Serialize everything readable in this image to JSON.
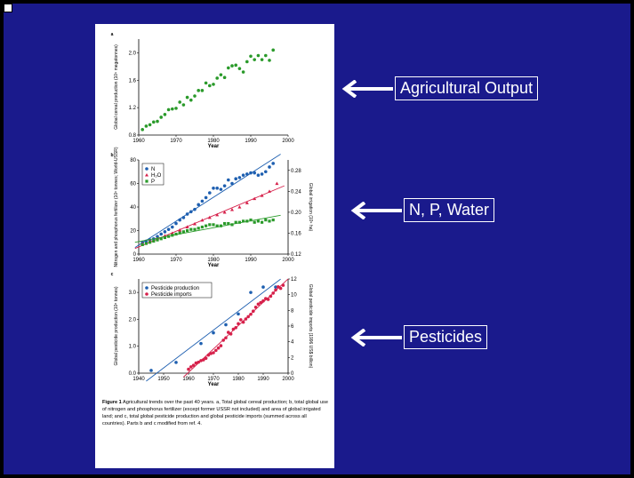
{
  "callouts": [
    {
      "label": "Agricultural Output"
    },
    {
      "label": "N, P, Water"
    },
    {
      "label": "Pesticides"
    }
  ],
  "colors": {
    "background": "#1a1a8c",
    "panel": "#ffffff",
    "green": "#2a9a2a",
    "blue": "#1e5fb0",
    "red": "#d6204a"
  },
  "figure": {
    "caption_title": "Figure 1",
    "caption_text": " Agricultural trends over the past 40 years. a, Total global cereal production; b, total global use of nitrogen and phosphorus fertilizer (except former USSR not included) and area of global irrigated land; and c, total global pesticide production and global pesticide imports (summed across all countries). Parts b and c modified from ref. 4."
  },
  "chart_data": [
    {
      "type": "scatter",
      "panel_label": "a",
      "ylabel": "Global cereal production (10⁹ megatonnes)",
      "xlabel": "Year",
      "xlim": [
        1960,
        2000
      ],
      "ylim": [
        0.8,
        2.2
      ],
      "xticks": [
        "1960",
        "1970",
        "1980",
        "1990",
        "2000"
      ],
      "yticks": [
        "0.8",
        "1.2",
        "1.6",
        "2.0"
      ],
      "series": [
        {
          "color": "#2a9a2a",
          "x": [
            1961,
            1962,
            1963,
            1964,
            1965,
            1966,
            1967,
            1968,
            1969,
            1970,
            1971,
            1972,
            1973,
            1974,
            1975,
            1976,
            1977,
            1978,
            1979,
            1980,
            1981,
            1982,
            1983,
            1984,
            1985,
            1986,
            1987,
            1988,
            1989,
            1990,
            1991,
            1992,
            1993,
            1994,
            1995,
            1996
          ],
          "y": [
            0.88,
            0.93,
            0.95,
            0.99,
            1.0,
            1.06,
            1.1,
            1.17,
            1.18,
            1.19,
            1.28,
            1.24,
            1.35,
            1.31,
            1.37,
            1.45,
            1.45,
            1.56,
            1.52,
            1.54,
            1.63,
            1.68,
            1.64,
            1.78,
            1.81,
            1.82,
            1.77,
            1.72,
            1.87,
            1.95,
            1.9,
            1.96,
            1.9,
            1.96,
            1.89,
            2.04
          ]
        }
      ]
    },
    {
      "type": "scatter",
      "panel_label": "b",
      "ylabel": "Nitrogen and phosphorus fertilizer (10⁶ tonnes; World-USSR)",
      "ylabel_right": "Global irrigation (10⁹ ha)",
      "xlabel": "Year",
      "xlim": [
        1960,
        2000
      ],
      "ylim": [
        0,
        80
      ],
      "ylim_right": [
        0.12,
        0.3
      ],
      "xticks": [
        "1960",
        "1970",
        "1980",
        "1990",
        "2000"
      ],
      "yticks": [
        "0",
        "20",
        "40",
        "60",
        "80"
      ],
      "yticks_right": [
        "0.12",
        "0.16",
        "0.20",
        "0.24",
        "0.28"
      ],
      "legend": [
        "N",
        "H₂O",
        "P"
      ],
      "series": [
        {
          "name": "N",
          "color": "#1e5fb0",
          "marker": "circle",
          "x": [
            1961,
            1962,
            1963,
            1964,
            1965,
            1966,
            1967,
            1968,
            1969,
            1970,
            1971,
            1972,
            1973,
            1974,
            1975,
            1976,
            1977,
            1978,
            1979,
            1980,
            1981,
            1982,
            1983,
            1984,
            1985,
            1986,
            1987,
            1988,
            1989,
            1990,
            1991,
            1992,
            1993,
            1994,
            1995,
            1996
          ],
          "y": [
            10,
            11,
            12,
            13,
            15,
            17,
            19,
            21,
            23,
            26,
            29,
            31,
            34,
            36,
            38,
            42,
            45,
            48,
            52,
            56,
            56,
            55,
            58,
            63,
            60,
            64,
            65,
            67,
            68,
            69,
            69,
            67,
            68,
            70,
            74,
            77
          ]
        },
        {
          "name": "H₂O",
          "color": "#d6204a",
          "marker": "triangle",
          "x": [
            1961,
            1963,
            1965,
            1967,
            1969,
            1971,
            1973,
            1975,
            1977,
            1979,
            1981,
            1983,
            1985,
            1987,
            1989,
            1991,
            1993,
            1995,
            1997
          ],
          "y": [
            0.14,
            0.145,
            0.15,
            0.155,
            0.16,
            0.166,
            0.172,
            0.178,
            0.185,
            0.19,
            0.195,
            0.2,
            0.205,
            0.21,
            0.218,
            0.226,
            0.232,
            0.24,
            0.255
          ]
        },
        {
          "name": "P",
          "color": "#2a9a2a",
          "marker": "square",
          "x": [
            1961,
            1962,
            1963,
            1964,
            1965,
            1966,
            1967,
            1968,
            1969,
            1970,
            1971,
            1972,
            1973,
            1974,
            1975,
            1976,
            1977,
            1978,
            1979,
            1980,
            1981,
            1982,
            1983,
            1984,
            1985,
            1986,
            1987,
            1988,
            1989,
            1990,
            1991,
            1992,
            1993,
            1994,
            1995,
            1996
          ],
          "y": [
            8,
            9,
            10,
            11,
            12,
            13,
            14,
            15,
            16,
            17,
            18,
            19,
            20,
            21,
            21,
            22,
            23,
            24,
            25,
            25,
            24,
            24,
            26,
            26,
            25,
            27,
            27,
            28,
            28,
            29,
            27,
            28,
            27,
            29,
            28,
            29
          ]
        }
      ]
    },
    {
      "type": "scatter",
      "panel_label": "c",
      "ylabel": "Global pesticide production (10⁶ tonnes)",
      "ylabel_right": "Global pesticide imports (1996 US$ billion)",
      "xlabel": "Year",
      "xlim": [
        1940,
        2000
      ],
      "ylim": [
        0,
        3.5
      ],
      "ylim_right": [
        0,
        12
      ],
      "xticks": [
        "1940",
        "1950",
        "1960",
        "1970",
        "1980",
        "1990",
        "2000"
      ],
      "yticks": [
        "0.0",
        "1.0",
        "2.0",
        "3.0"
      ],
      "yticks_right": [
        "0",
        "2",
        "4",
        "6",
        "8",
        "10",
        "12"
      ],
      "legend": [
        "Pesticide production",
        "Pesticide imports"
      ],
      "series": [
        {
          "name": "Pesticide production",
          "color": "#1e5fb0",
          "x": [
            1945,
            1955,
            1965,
            1970,
            1975,
            1980,
            1985,
            1990,
            1995
          ],
          "y": [
            0.1,
            0.4,
            1.1,
            1.5,
            1.8,
            2.2,
            3.0,
            3.2,
            3.2
          ]
        },
        {
          "name": "Pesticide imports",
          "color": "#d6204a",
          "x": [
            1960,
            1961,
            1962,
            1963,
            1964,
            1965,
            1966,
            1967,
            1968,
            1969,
            1970,
            1971,
            1972,
            1973,
            1974,
            1975,
            1976,
            1977,
            1978,
            1979,
            1980,
            1981,
            1982,
            1983,
            1984,
            1985,
            1986,
            1987,
            1988,
            1989,
            1990,
            1991,
            1992,
            1993,
            1994,
            1995,
            1996,
            1997,
            1998
          ],
          "y": [
            0.5,
            0.8,
            1.0,
            1.3,
            1.4,
            1.6,
            1.7,
            1.9,
            2.3,
            2.5,
            2.6,
            2.9,
            3.2,
            3.5,
            4.2,
            4.5,
            5.2,
            5.0,
            5.6,
            5.8,
            6.3,
            6.8,
            6.5,
            6.9,
            7.2,
            7.5,
            7.9,
            8.4,
            8.8,
            9.0,
            9.2,
            9.5,
            9.4,
            9.8,
            10.2,
            10.6,
            11.0,
            10.8,
            11.2
          ]
        }
      ]
    }
  ]
}
